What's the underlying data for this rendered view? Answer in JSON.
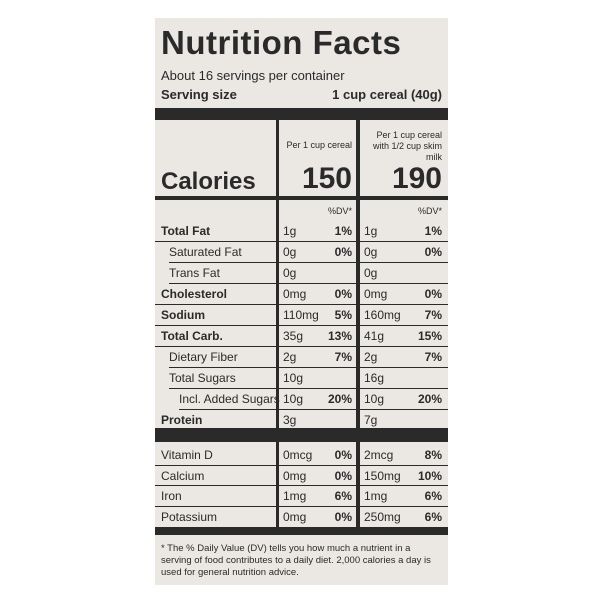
{
  "title": "Nutrition Facts",
  "servings": "About 16 servings per container",
  "serving_size": {
    "label": "Serving size",
    "value": "1 cup cereal (40g)"
  },
  "columns": [
    "Per 1 cup cereal",
    "Per 1 cup cereal with 1/2 cup skim milk"
  ],
  "calories": {
    "label": "Calories",
    "values": [
      "150",
      "190"
    ]
  },
  "dv_header": "%DV*",
  "nutrients": [
    {
      "name": "Total Fat",
      "amount1": "1g",
      "dv1": "1%",
      "amount2": "1g",
      "dv2": "1%"
    },
    {
      "name": "Saturated Fat",
      "amount1": "0g",
      "dv1": "0%",
      "amount2": "0g",
      "dv2": "0%"
    },
    {
      "name": "Trans Fat",
      "amount1": "0g",
      "amount2": "0g"
    },
    {
      "name": "Cholesterol",
      "amount1": "0mg",
      "dv1": "0%",
      "amount2": "0mg",
      "dv2": "0%"
    },
    {
      "name": "Sodium",
      "amount1": "110mg",
      "dv1": "5%",
      "amount2": "160mg",
      "dv2": "7%"
    },
    {
      "name": "Total Carb.",
      "amount1": "35g",
      "dv1": "13%",
      "amount2": "41g",
      "dv2": "15%"
    },
    {
      "name": "Dietary Fiber",
      "amount1": "2g",
      "dv1": "7%",
      "amount2": "2g",
      "dv2": "7%"
    },
    {
      "name": "Total Sugars",
      "amount1": "10g",
      "amount2": "16g"
    },
    {
      "name": "Incl. Added Sugars",
      "amount1": "10g",
      "dv1": "20%",
      "amount2": "10g",
      "dv2": "20%"
    },
    {
      "name": "Protein",
      "amount1": "3g",
      "amount2": "7g"
    }
  ],
  "vitamins": [
    {
      "name": "Vitamin D",
      "amount1": "0mcg",
      "dv1": "0%",
      "amount2": "2mcg",
      "dv2": "8%"
    },
    {
      "name": "Calcium",
      "amount1": "0mg",
      "dv1": "0%",
      "amount2": "150mg",
      "dv2": "10%"
    },
    {
      "name": "Iron",
      "amount1": "1mg",
      "dv1": "6%",
      "amount2": "1mg",
      "dv2": "6%"
    },
    {
      "name": "Potassium",
      "amount1": "0mg",
      "dv1": "0%",
      "amount2": "250mg",
      "dv2": "6%"
    }
  ],
  "footnote": "* The % Daily Value (DV) tells you how much a nutrient in a serving of food contributes to a daily diet. 2,000 calories a day is used for general nutrition advice."
}
